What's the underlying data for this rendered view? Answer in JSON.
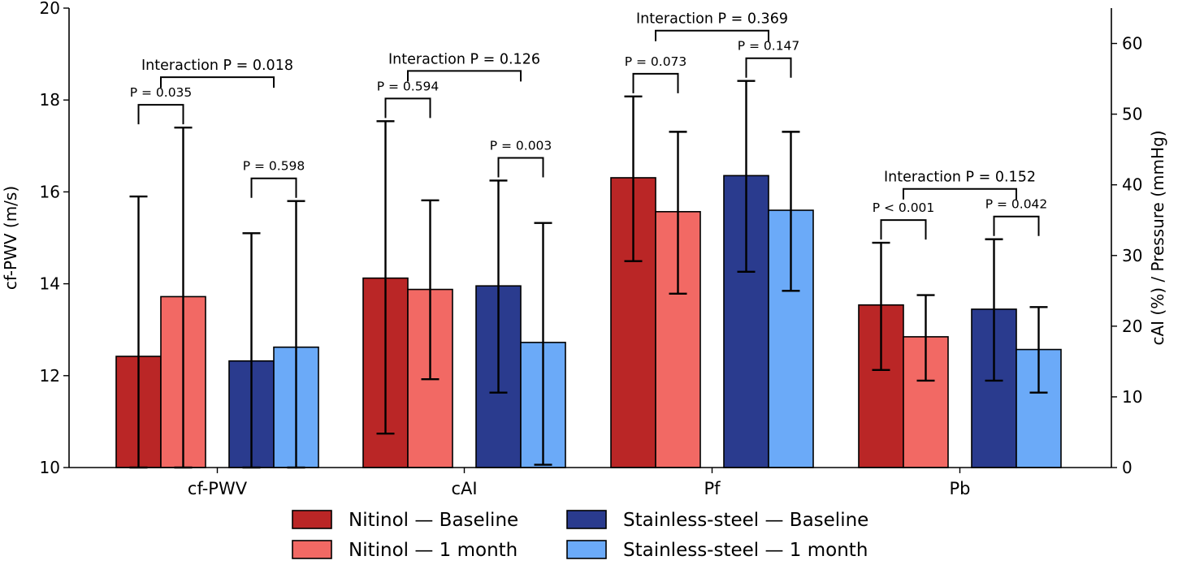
{
  "chart_data": {
    "type": "bar",
    "categories": [
      "cf-PWV",
      "cAI",
      "Pf",
      "Pb"
    ],
    "left_axis": {
      "label": "cf-PWV (m/s)",
      "ylim": [
        10,
        20
      ],
      "ticks": [
        "10",
        "12",
        "14",
        "16",
        "18",
        "20"
      ],
      "applies_to": [
        "cf-PWV"
      ]
    },
    "right_axis": {
      "label": "cAI (%) / Pressure (mmHg)",
      "ylim": [
        0,
        65
      ],
      "ticks": [
        "0",
        "10",
        "20",
        "30",
        "40",
        "50",
        "60"
      ],
      "applies_to": [
        "cAI",
        "Pf",
        "Pb"
      ]
    },
    "series": [
      {
        "name": "Nitinol — Baseline",
        "color": "#BA2626",
        "values": [
          12.42,
          26.8,
          41.0,
          23.0
        ],
        "err_low": [
          10.0,
          4.8,
          29.2,
          13.8
        ],
        "err_high": [
          15.9,
          49.0,
          52.5,
          31.8
        ]
      },
      {
        "name": "Nitinol — 1 month",
        "color": "#F26964",
        "values": [
          13.72,
          25.2,
          36.2,
          18.5
        ],
        "err_low": [
          10.0,
          12.5,
          24.6,
          12.3
        ],
        "err_high": [
          17.4,
          37.8,
          47.5,
          24.4
        ]
      },
      {
        "name": "Stainless-steel — Baseline",
        "color": "#2A3B8E",
        "values": [
          12.32,
          25.7,
          41.3,
          22.4
        ],
        "err_low": [
          10.0,
          10.6,
          27.7,
          12.3
        ],
        "err_high": [
          15.1,
          40.6,
          54.7,
          32.3
        ]
      },
      {
        "name": "Stainless-steel — 1 month",
        "color": "#6BAAF8",
        "values": [
          12.62,
          17.7,
          36.4,
          16.7
        ],
        "err_low": [
          10.0,
          0.4,
          25.0,
          10.6
        ],
        "err_high": [
          15.8,
          34.6,
          47.5,
          22.7
        ]
      }
    ],
    "annotations": {
      "within_group": [
        {
          "category": "cf-PWV",
          "group": "Nitinol",
          "text": "P = 0.035"
        },
        {
          "category": "cf-PWV",
          "group": "Stainless-steel",
          "text": "P = 0.598"
        },
        {
          "category": "cAI",
          "group": "Nitinol",
          "text": "P = 0.594"
        },
        {
          "category": "cAI",
          "group": "Stainless-steel",
          "text": "P = 0.003"
        },
        {
          "category": "Pf",
          "group": "Nitinol",
          "text": "P = 0.073"
        },
        {
          "category": "Pf",
          "group": "Stainless-steel",
          "text": "P = 0.147"
        },
        {
          "category": "Pb",
          "group": "Nitinol",
          "text": "P < 0.001"
        },
        {
          "category": "Pb",
          "group": "Stainless-steel",
          "text": "P = 0.042"
        }
      ],
      "interaction": [
        {
          "category": "cf-PWV",
          "text": "Interaction P = 0.018"
        },
        {
          "category": "cAI",
          "text": "Interaction P = 0.126"
        },
        {
          "category": "Pf",
          "text": "Interaction P = 0.369"
        },
        {
          "category": "Pb",
          "text": "Interaction P = 0.152"
        }
      ]
    },
    "legend": {
      "position": "bottom-center",
      "columns": 2,
      "entries": [
        "Nitinol — Baseline",
        "Stainless-steel — Baseline",
        "Nitinol — 1 month",
        "Stainless-steel — 1 month"
      ]
    }
  }
}
